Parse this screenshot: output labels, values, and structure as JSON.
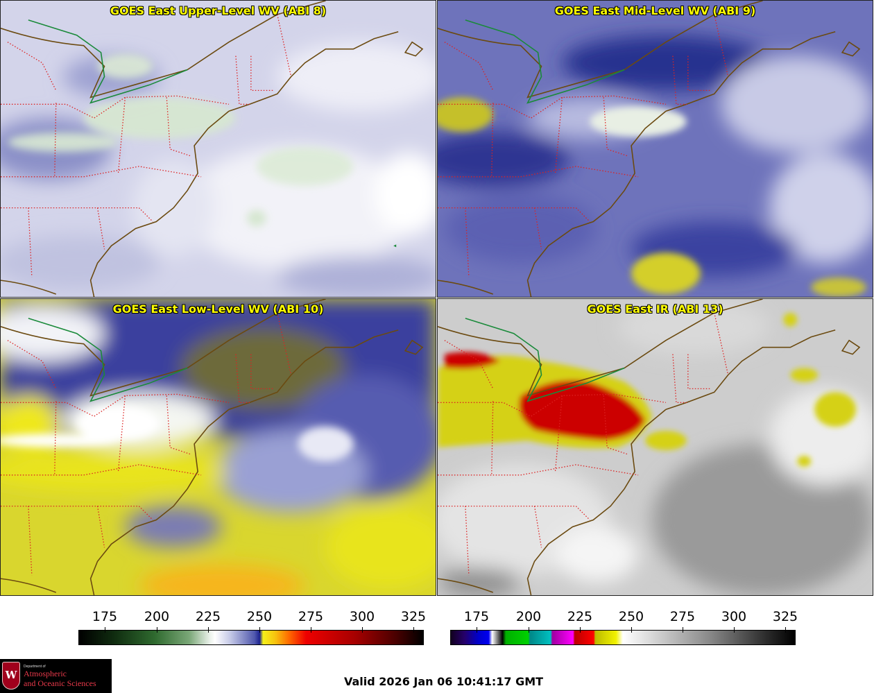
{
  "panels": [
    {
      "id": "upper",
      "title": "GOES East Upper-Level WV (ABI 8)"
    },
    {
      "id": "mid",
      "title": "GOES East Mid-Level WV (ABI 9)"
    },
    {
      "id": "low",
      "title": "GOES East Low-Level WV (ABI 10)"
    },
    {
      "id": "ir",
      "title": "GOES East IR (ABI 13)"
    }
  ],
  "colorbars": {
    "wv": {
      "ticks": [
        "175",
        "200",
        "225",
        "250",
        "275",
        "300",
        "325"
      ]
    },
    "ir": {
      "ticks": [
        "175",
        "200",
        "225",
        "250",
        "275",
        "300",
        "325"
      ]
    }
  },
  "footer": {
    "valid_time": "Valid 2026 Jan 06 10:41:17 GMT",
    "logo": {
      "dept_small": "Department of",
      "line1": "Atmospheric",
      "line2": "and Oceanic Sciences",
      "mark": "W"
    }
  },
  "colors": {
    "title_text": "#ffff00",
    "state_borders": "#dd2222",
    "coastlines": "#6b4a10",
    "intl_border": "#1a8a3a"
  }
}
